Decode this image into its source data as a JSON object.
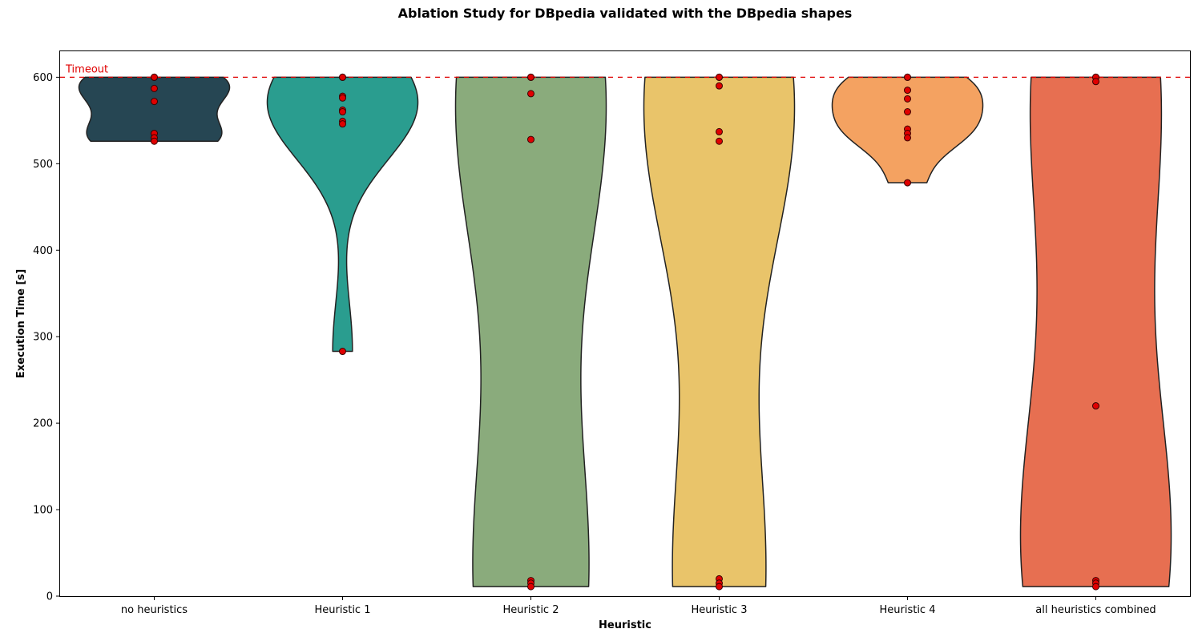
{
  "chart_data": {
    "type": "violin",
    "title": "Ablation Study for DBpedia validated with the DBpedia shapes",
    "xlabel": "Heuristic",
    "ylabel": "Execution Time [s]",
    "ylim": [
      0,
      630
    ],
    "yticks": [
      0,
      100,
      200,
      300,
      400,
      500,
      600
    ],
    "grid": false,
    "categories": [
      "no heuristics",
      "Heuristic 1",
      "Heuristic 2",
      "Heuristic 3",
      "Heuristic 4",
      "all heuristics combined"
    ],
    "series": [
      {
        "category": "no heuristics",
        "color": "#264653",
        "points": [
          600,
          600,
          587,
          572,
          535,
          530,
          526
        ]
      },
      {
        "category": "Heuristic 1",
        "color": "#2a9d8f",
        "points": [
          600,
          600,
          578,
          576,
          562,
          560,
          549,
          546,
          283
        ]
      },
      {
        "category": "Heuristic 2",
        "color": "#8aab7c",
        "points": [
          600,
          600,
          581,
          528,
          18,
          15,
          11
        ]
      },
      {
        "category": "Heuristic 3",
        "color": "#e9c46a",
        "points": [
          600,
          600,
          590,
          537,
          526,
          20,
          15,
          11
        ]
      },
      {
        "category": "Heuristic 4",
        "color": "#f4a261",
        "points": [
          600,
          600,
          585,
          575,
          560,
          540,
          535,
          530,
          478
        ]
      },
      {
        "category": "all heuristics combined",
        "color": "#e76f51",
        "points": [
          600,
          600,
          595,
          220,
          18,
          15,
          11
        ]
      }
    ],
    "reference_line": {
      "value": 600,
      "label": "Timeout",
      "color": "#e00000",
      "style": "dashed"
    },
    "point_color": "#e00000"
  }
}
